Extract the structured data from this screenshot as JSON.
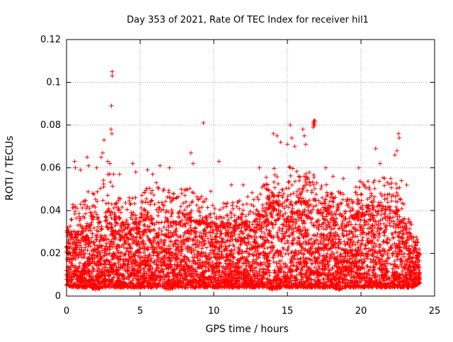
{
  "chart_data": {
    "type": "scatter",
    "title": "Day 353 of 2021, Rate Of TEC Index for receiver hil1",
    "xlabel": "GPS time / hours",
    "ylabel": "ROTI / TECUs",
    "xlim": [
      0,
      25
    ],
    "ylim": [
      0,
      0.12
    ],
    "x_ticks": [
      0,
      5,
      10,
      15,
      20,
      25
    ],
    "x_tick_labels": [
      "0",
      "5",
      "10",
      "15",
      "20",
      "25"
    ],
    "y_ticks": [
      0,
      0.02,
      0.04,
      0.06,
      0.08,
      0.1,
      0.12
    ],
    "y_tick_labels": [
      "0",
      "0.02",
      "0.04",
      "0.06",
      "0.08",
      "0.1",
      "0.12"
    ],
    "grid": true,
    "marker": "+",
    "series": [
      {
        "name": "ROTI",
        "color": "#ff0000",
        "x": [
          3.1,
          3.1,
          3.05,
          3.02,
          3.08,
          2.55,
          2.45,
          2.35,
          2.8,
          2.95,
          3.2,
          9.3,
          15.2,
          14.05,
          14.3,
          14.55,
          15.0,
          15.3,
          15.5,
          16.05,
          16.15,
          16.25,
          16.75,
          16.8,
          16.85,
          16.75,
          16.8,
          16.88,
          16.78,
          16.82,
          16.86,
          16.77,
          16.84,
          22.55,
          22.6,
          22.45,
          22.3,
          21.0,
          21.3,
          8.45,
          8.6,
          10.35,
          6.35,
          7.0,
          5.5,
          5.85,
          19.85,
          0.55,
          0.6,
          1.4,
          1.5,
          4.5,
          4.7,
          2.05,
          3.6,
          0.95,
          12.0,
          18.1,
          22.75,
          23.1,
          24.0,
          23.95,
          0.0,
          0.1,
          13.1,
          13.4,
          11.2,
          17.6,
          18.8,
          20.2,
          7.8,
          6.1,
          9.8
        ],
        "y": [
          0.105,
          0.103,
          0.089,
          0.078,
          0.076,
          0.073,
          0.067,
          0.065,
          0.063,
          0.062,
          0.057,
          0.081,
          0.08,
          0.076,
          0.075,
          0.072,
          0.071,
          0.074,
          0.07,
          0.078,
          0.075,
          0.071,
          0.081,
          0.082,
          0.08,
          0.079,
          0.081,
          0.082,
          0.08,
          0.081,
          0.08,
          0.081,
          0.082,
          0.076,
          0.074,
          0.068,
          0.066,
          0.069,
          0.062,
          0.067,
          0.062,
          0.063,
          0.061,
          0.06,
          0.059,
          0.057,
          0.06,
          0.063,
          0.06,
          0.065,
          0.061,
          0.062,
          0.058,
          0.06,
          0.057,
          0.059,
          0.052,
          0.056,
          0.054,
          0.052,
          0.02,
          0.01,
          0.012,
          0.018,
          0.06,
          0.052,
          0.052,
          0.06,
          0.055,
          0.052,
          0.05,
          0.053,
          0.049
        ],
        "bulk_envelope": {
          "hours": [
            0,
            0.5,
            1,
            1.5,
            2,
            2.5,
            3,
            3.5,
            4,
            4.5,
            5,
            5.5,
            6,
            6.5,
            7,
            7.5,
            8,
            8.5,
            9,
            9.5,
            10,
            10.5,
            11,
            11.5,
            12,
            12.5,
            13,
            13.5,
            14,
            14.5,
            15,
            15.5,
            16,
            16.5,
            17,
            17.5,
            18,
            18.5,
            19,
            19.5,
            20,
            20.5,
            21,
            21.5,
            22,
            22.5,
            23,
            23.5,
            24
          ],
          "min_roti": [
            0.005,
            0.004,
            0.004,
            0.004,
            0.003,
            0.004,
            0.004,
            0.004,
            0.004,
            0.004,
            0.004,
            0.004,
            0.004,
            0.004,
            0.003,
            0.004,
            0.004,
            0.004,
            0.004,
            0.004,
            0.004,
            0.004,
            0.004,
            0.004,
            0.004,
            0.004,
            0.004,
            0.004,
            0.003,
            0.004,
            0.004,
            0.004,
            0.004,
            0.004,
            0.004,
            0.004,
            0.004,
            0.003,
            0.004,
            0.004,
            0.004,
            0.004,
            0.004,
            0.004,
            0.004,
            0.004,
            0.004,
            0.004,
            0.006
          ],
          "dense_top": [
            0.022,
            0.032,
            0.03,
            0.034,
            0.032,
            0.036,
            0.038,
            0.034,
            0.032,
            0.034,
            0.034,
            0.036,
            0.034,
            0.036,
            0.034,
            0.034,
            0.036,
            0.036,
            0.034,
            0.034,
            0.032,
            0.032,
            0.032,
            0.032,
            0.034,
            0.034,
            0.036,
            0.04,
            0.042,
            0.042,
            0.044,
            0.042,
            0.044,
            0.042,
            0.04,
            0.04,
            0.038,
            0.038,
            0.036,
            0.038,
            0.038,
            0.04,
            0.04,
            0.04,
            0.04,
            0.038,
            0.03,
            0.026,
            0.022
          ],
          "sparse_top": [
            0.03,
            0.048,
            0.044,
            0.05,
            0.048,
            0.055,
            0.058,
            0.05,
            0.044,
            0.048,
            0.046,
            0.052,
            0.05,
            0.052,
            0.05,
            0.048,
            0.05,
            0.052,
            0.046,
            0.048,
            0.046,
            0.044,
            0.044,
            0.044,
            0.046,
            0.048,
            0.05,
            0.056,
            0.06,
            0.06,
            0.064,
            0.06,
            0.062,
            0.058,
            0.056,
            0.054,
            0.052,
            0.05,
            0.048,
            0.052,
            0.054,
            0.056,
            0.056,
            0.056,
            0.056,
            0.054,
            0.042,
            0.034,
            0.024
          ]
        }
      }
    ]
  }
}
